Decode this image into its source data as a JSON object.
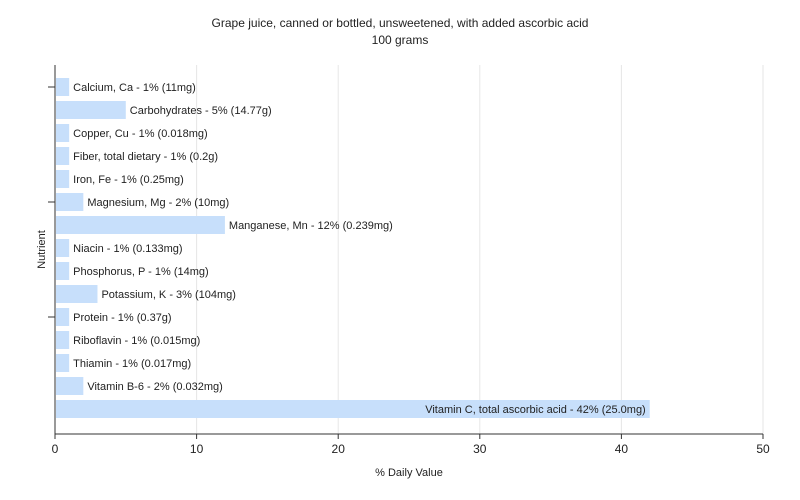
{
  "chart_data": {
    "type": "bar",
    "orientation": "horizontal",
    "title": "Grape juice, canned or bottled, unsweetened, with added ascorbic acid",
    "subtitle": "100 grams",
    "xlabel": "% Daily Value",
    "ylabel": "Nutrient",
    "xlim": [
      0,
      50
    ],
    "xticks": [
      0,
      10,
      20,
      30,
      40,
      50
    ],
    "grid": "vertical",
    "bar_color": "#c7dffb",
    "categories": [
      "Calcium, Ca",
      "Carbohydrates",
      "Copper, Cu",
      "Fiber, total dietary",
      "Iron, Fe",
      "Magnesium, Mg",
      "Manganese, Mn",
      "Niacin",
      "Phosphorus, P",
      "Potassium, K",
      "Protein",
      "Riboflavin",
      "Thiamin",
      "Vitamin B-6",
      "Vitamin C, total ascorbic acid"
    ],
    "values": [
      1,
      5,
      1,
      1,
      1,
      2,
      12,
      1,
      1,
      3,
      1,
      1,
      1,
      2,
      42
    ],
    "data_labels": [
      "Calcium, Ca - 1% (11mg)",
      "Carbohydrates - 5% (14.77g)",
      "Copper, Cu - 1% (0.018mg)",
      "Fiber, total dietary - 1% (0.2g)",
      "Iron, Fe - 1% (0.25mg)",
      "Magnesium, Mg - 2% (10mg)",
      "Manganese, Mn - 12% (0.239mg)",
      "Niacin - 1% (0.133mg)",
      "Phosphorus, P - 1% (14mg)",
      "Potassium, K - 3% (104mg)",
      "Protein - 1% (0.37g)",
      "Riboflavin - 1% (0.015mg)",
      "Thiamin - 1% (0.017mg)",
      "Vitamin B-6 - 2% (0.032mg)",
      "Vitamin C, total ascorbic acid - 42% (25.0mg)"
    ]
  }
}
